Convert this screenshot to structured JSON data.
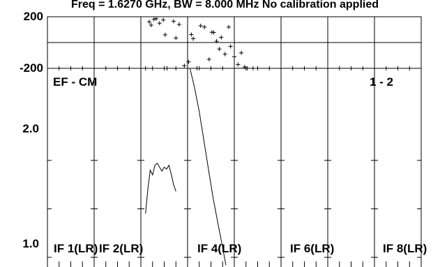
{
  "header_text": "Freq = 1.6270 GHz, BW = 8.000 MHz  No calibration applied",
  "baseline_label": "EF - CM",
  "polarization_label": "1 - 2",
  "chart_data": [
    {
      "type": "scatter",
      "panel": "phase",
      "ylim": [
        -200,
        200
      ],
      "y_ticks": [
        "200",
        "-200"
      ],
      "series": [
        {
          "values": [
            {
              "x": 2.1,
              "y": -200
            },
            {
              "x": 2.18,
              "y": 160
            },
            {
              "x": 2.22,
              "y": 135
            },
            {
              "x": 2.28,
              "y": 180
            },
            {
              "x": 2.33,
              "y": 185
            },
            {
              "x": 2.4,
              "y": 150
            },
            {
              "x": 2.48,
              "y": 175
            },
            {
              "x": 2.52,
              "y": 60
            },
            {
              "x": 2.56,
              "y": -200
            },
            {
              "x": 2.7,
              "y": 165
            },
            {
              "x": 2.75,
              "y": 35
            },
            {
              "x": 2.82,
              "y": 140
            },
            {
              "x": 2.93,
              "y": -180
            },
            {
              "x": 3.02,
              "y": -150
            },
            {
              "x": 3.08,
              "y": 62
            },
            {
              "x": 3.12,
              "y": 30
            },
            {
              "x": 3.2,
              "y": -200
            },
            {
              "x": 3.28,
              "y": 130
            },
            {
              "x": 3.36,
              "y": 120
            },
            {
              "x": 3.46,
              "y": -130
            },
            {
              "x": 3.52,
              "y": 80
            },
            {
              "x": 3.56,
              "y": 78
            },
            {
              "x": 3.62,
              "y": 10
            },
            {
              "x": 3.68,
              "y": -50
            },
            {
              "x": 3.72,
              "y": 40
            },
            {
              "x": 3.8,
              "y": -90
            },
            {
              "x": 3.88,
              "y": 120
            },
            {
              "x": 3.92,
              "y": -30
            },
            {
              "x": 4.0,
              "y": -110
            },
            {
              "x": 4.08,
              "y": -170
            },
            {
              "x": 4.15,
              "y": -80
            },
            {
              "x": 4.22,
              "y": -190
            },
            {
              "x": 4.28,
              "y": -200
            },
            {
              "x": 4.4,
              "y": -200
            },
            {
              "x": 5.0,
              "y": -200
            },
            {
              "x": 6.0,
              "y": -200
            },
            {
              "x": 7.0,
              "y": -200
            }
          ]
        }
      ]
    },
    {
      "type": "line",
      "panel": "amplitude",
      "ylim": [
        0.9,
        2.95
      ],
      "y_ticks": [
        "2.0",
        "1.0"
      ],
      "x_labels": [
        "IF 1(LR)",
        "IF 2(LR)",
        "IF 4(LR)",
        "IF 6(LR)",
        "IF 8(LR)"
      ],
      "series": [
        {
          "values": [
            {
              "x": 2.1,
              "y": 1.45
            },
            {
              "x": 2.15,
              "y": 1.7
            },
            {
              "x": 2.2,
              "y": 1.9
            },
            {
              "x": 2.25,
              "y": 1.85
            },
            {
              "x": 2.3,
              "y": 1.95
            },
            {
              "x": 2.35,
              "y": 1.97
            },
            {
              "x": 2.4,
              "y": 1.93
            },
            {
              "x": 2.45,
              "y": 1.89
            },
            {
              "x": 2.5,
              "y": 1.93
            },
            {
              "x": 2.55,
              "y": 1.91
            },
            {
              "x": 2.6,
              "y": 1.95
            },
            {
              "x": 2.65,
              "y": 1.86
            },
            {
              "x": 2.7,
              "y": 1.75
            },
            {
              "x": 2.75,
              "y": 1.68
            }
          ]
        },
        {
          "values": [
            {
              "x": 3.05,
              "y": 2.95
            },
            {
              "x": 3.15,
              "y": 2.75
            },
            {
              "x": 3.25,
              "y": 2.5
            },
            {
              "x": 3.35,
              "y": 2.2
            },
            {
              "x": 3.45,
              "y": 1.9
            },
            {
              "x": 3.55,
              "y": 1.6
            },
            {
              "x": 3.65,
              "y": 1.35
            },
            {
              "x": 3.75,
              "y": 1.1
            },
            {
              "x": 3.82,
              "y": 0.92
            }
          ]
        }
      ]
    }
  ]
}
